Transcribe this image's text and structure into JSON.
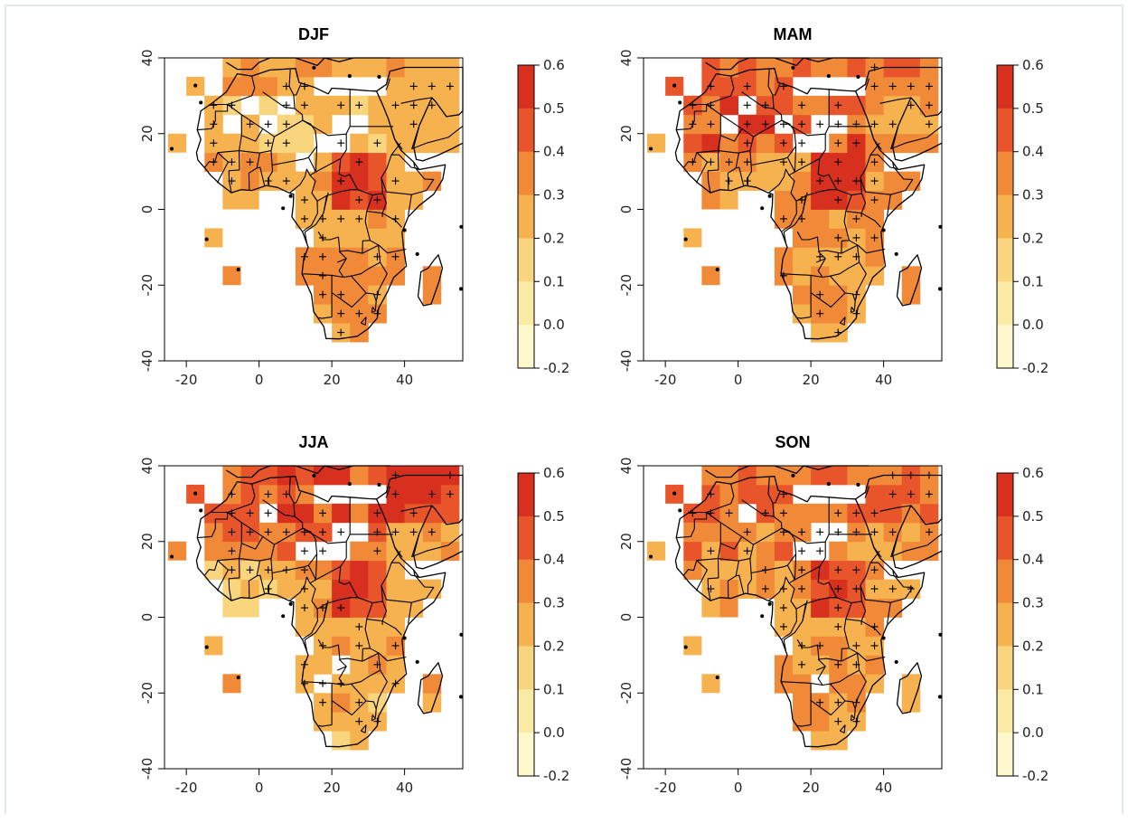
{
  "panels": [
    {
      "title": "DJF",
      "pattern": "djf"
    },
    {
      "title": "MAM",
      "pattern": "mam"
    },
    {
      "title": "JJA",
      "pattern": "jja"
    },
    {
      "title": "SON",
      "pattern": "son"
    }
  ],
  "x_ticks": [
    "-20",
    "0",
    "20",
    "40"
  ],
  "y_ticks": [
    "-40",
    "-20",
    "0",
    "20",
    "40"
  ],
  "colorbar_ticks": [
    "0.6",
    "0.5",
    "0.4",
    "0.3",
    "0.2",
    "0.1",
    "0.0",
    "-0.2"
  ],
  "colorbar_colors": [
    "#d7301f",
    "#e9552a",
    "#f18a38",
    "#f6b24e",
    "#f9d57d",
    "#fbe9a6",
    "#fff8cc"
  ],
  "colors": {
    "frame_border": "#dde8ef",
    "boundary_line": "#000000"
  },
  "chart_data": {
    "type": "heatmap",
    "panels": [
      "DJF",
      "MAM",
      "JJA",
      "SON"
    ],
    "x_ticks": [
      -20,
      0,
      20,
      40
    ],
    "y_ticks": [
      -40,
      -20,
      0,
      20,
      40
    ],
    "colorbar_breaks": [
      -0.2,
      0.0,
      0.1,
      0.2,
      0.3,
      0.4,
      0.5,
      0.6
    ],
    "marker_meaning_visible": "+",
    "domain_lon": [
      -26,
      56
    ],
    "domain_lat": [
      -40,
      40
    ]
  }
}
